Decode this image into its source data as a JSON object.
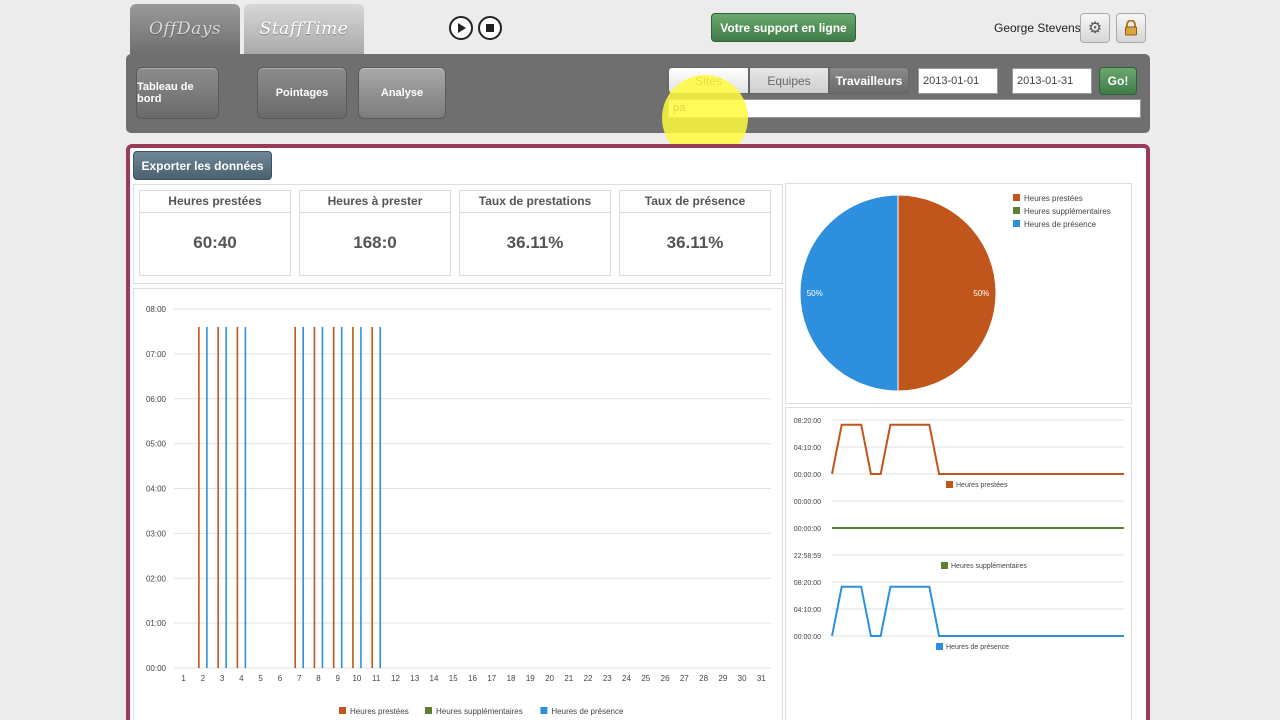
{
  "header": {
    "logo_offdays": "OffDays",
    "logo_stafftime": "StaffTime",
    "support_button": "Votre support en ligne",
    "user_name": "George Stevens"
  },
  "nav": {
    "items": [
      "Tableau de bord",
      "Pointages",
      "Analyse"
    ],
    "active": "Analyse"
  },
  "filters": {
    "segments": [
      "Sites",
      "Equipes",
      "Travailleurs"
    ],
    "active_segment": "Travailleurs",
    "date_from": "2013-01-01",
    "date_to": "2013-01-31",
    "go_button": "Go!",
    "search_value": "pa"
  },
  "export_button": "Exporter les données",
  "stats": [
    {
      "label": "Heures prestées",
      "value": "60:40"
    },
    {
      "label": "Heures à prester",
      "value": "168:0"
    },
    {
      "label": "Taux de prestations",
      "value": "36.11%"
    },
    {
      "label": "Taux de présence",
      "value": "36.11%"
    }
  ],
  "colors": {
    "prestees": "#c0561b",
    "supplementaires": "#5f7f37",
    "presence": "#2e8fde",
    "panel_border": "#9b3b5a"
  },
  "chart_data": [
    {
      "type": "bar",
      "categories": [
        "1",
        "2",
        "3",
        "4",
        "5",
        "6",
        "7",
        "8",
        "9",
        "10",
        "11",
        "12",
        "13",
        "14",
        "15",
        "16",
        "17",
        "18",
        "19",
        "20",
        "21",
        "22",
        "23",
        "24",
        "25",
        "26",
        "27",
        "28",
        "29",
        "30",
        "31"
      ],
      "y_ticks": [
        "00:00",
        "01:00",
        "02:00",
        "03:00",
        "04:00",
        "05:00",
        "06:00",
        "07:00",
        "08:00"
      ],
      "ylim": [
        0,
        8
      ],
      "series": [
        {
          "name": "Heures prestées",
          "values": [
            0,
            7.6,
            7.6,
            7.6,
            0,
            0,
            7.6,
            7.6,
            7.6,
            7.6,
            7.6,
            0,
            0,
            0,
            0,
            0,
            0,
            0,
            0,
            0,
            0,
            0,
            0,
            0,
            0,
            0,
            0,
            0,
            0,
            0,
            0
          ]
        },
        {
          "name": "Heures supplémentaires",
          "values": [
            0,
            0,
            0,
            0,
            0,
            0,
            0,
            0,
            0,
            0,
            0,
            0,
            0,
            0,
            0,
            0,
            0,
            0,
            0,
            0,
            0,
            0,
            0,
            0,
            0,
            0,
            0,
            0,
            0,
            0,
            0
          ]
        },
        {
          "name": "Heures de présence",
          "values": [
            0,
            7.6,
            7.6,
            7.6,
            0,
            0,
            7.6,
            7.6,
            7.6,
            7.6,
            7.6,
            0,
            0,
            0,
            0,
            0,
            0,
            0,
            0,
            0,
            0,
            0,
            0,
            0,
            0,
            0,
            0,
            0,
            0,
            0,
            0
          ]
        }
      ],
      "legend": "bottom"
    },
    {
      "type": "pie",
      "slices": [
        {
          "name": "Heures prestées",
          "value": 50,
          "label": "50%"
        },
        {
          "name": "Heures supplémentaires",
          "value": 0,
          "label": ""
        },
        {
          "name": "Heures de présence",
          "value": 50,
          "label": "50%"
        }
      ],
      "legend": "top-right"
    },
    {
      "type": "line",
      "panels": [
        {
          "name": "Heures prestées",
          "y_ticks": [
            "00:00:00",
            "04:10:00",
            "08:20:00"
          ],
          "ylim": [
            0,
            8.33
          ],
          "values": [
            0,
            7.6,
            7.6,
            7.6,
            0,
            0,
            7.6,
            7.6,
            7.6,
            7.6,
            7.6,
            0,
            0,
            0,
            0,
            0,
            0,
            0,
            0,
            0,
            0,
            0,
            0,
            0,
            0,
            0,
            0,
            0,
            0,
            0,
            0
          ]
        },
        {
          "name": "Heures supplémentaires",
          "y_ticks": [
            "22:58:59",
            "00:00:00",
            "00:00:00"
          ],
          "ylim": [
            -1,
            1
          ],
          "values": [
            0,
            0,
            0,
            0,
            0,
            0,
            0,
            0,
            0,
            0,
            0,
            0,
            0,
            0,
            0,
            0,
            0,
            0,
            0,
            0,
            0,
            0,
            0,
            0,
            0,
            0,
            0,
            0,
            0,
            0,
            0
          ]
        },
        {
          "name": "Heures de présence",
          "y_ticks": [
            "00:00:00",
            "04:10:00",
            "08:20:00"
          ],
          "ylim": [
            0,
            8.33
          ],
          "values": [
            0,
            7.6,
            7.6,
            7.6,
            0,
            0,
            7.6,
            7.6,
            7.6,
            7.6,
            7.6,
            0,
            0,
            0,
            0,
            0,
            0,
            0,
            0,
            0,
            0,
            0,
            0,
            0,
            0,
            0,
            0,
            0,
            0,
            0,
            0
          ]
        }
      ]
    }
  ]
}
